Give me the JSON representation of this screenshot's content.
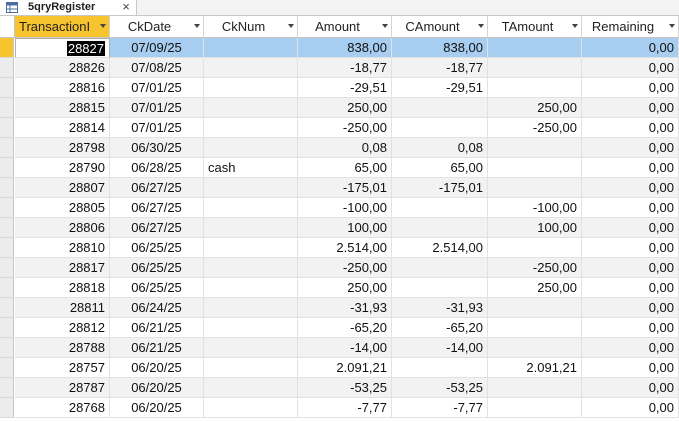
{
  "tab": {
    "title": "5qryRegister",
    "close_glyph": "×",
    "icon": "query-icon"
  },
  "columns": [
    "TransactionI",
    "CkDate",
    "CkNum",
    "Amount",
    "CAmount",
    "TAmount",
    "Remaining"
  ],
  "rows": [
    [
      "28827",
      "07/09/25",
      "",
      "838,00",
      "838,00",
      "",
      "0,00"
    ],
    [
      "28826",
      "07/08/25",
      "",
      "-18,77",
      "-18,77",
      "",
      "0,00"
    ],
    [
      "28816",
      "07/01/25",
      "",
      "-29,51",
      "-29,51",
      "",
      "0,00"
    ],
    [
      "28815",
      "07/01/25",
      "",
      "250,00",
      "",
      "250,00",
      "0,00"
    ],
    [
      "28814",
      "07/01/25",
      "",
      "-250,00",
      "",
      "-250,00",
      "0,00"
    ],
    [
      "28798",
      "06/30/25",
      "",
      "0,08",
      "0,08",
      "",
      "0,00"
    ],
    [
      "28790",
      "06/28/25",
      "cash",
      "65,00",
      "65,00",
      "",
      "0,00"
    ],
    [
      "28807",
      "06/27/25",
      "",
      "-175,01",
      "-175,01",
      "",
      "0,00"
    ],
    [
      "28805",
      "06/27/25",
      "",
      "-100,00",
      "",
      "-100,00",
      "0,00"
    ],
    [
      "28806",
      "06/27/25",
      "",
      "100,00",
      "",
      "100,00",
      "0,00"
    ],
    [
      "28810",
      "06/25/25",
      "",
      "2.514,00",
      "2.514,00",
      "",
      "0,00"
    ],
    [
      "28817",
      "06/25/25",
      "",
      "-250,00",
      "",
      "-250,00",
      "0,00"
    ],
    [
      "28818",
      "06/25/25",
      "",
      "250,00",
      "",
      "250,00",
      "0,00"
    ],
    [
      "28811",
      "06/24/25",
      "",
      "-31,93",
      "-31,93",
      "",
      "0,00"
    ],
    [
      "28812",
      "06/21/25",
      "",
      "-65,20",
      "-65,20",
      "",
      "0,00"
    ],
    [
      "28788",
      "06/21/25",
      "",
      "-14,00",
      "-14,00",
      "",
      "0,00"
    ],
    [
      "28757",
      "06/20/25",
      "",
      "2.091,21",
      "",
      "2.091,21",
      "0,00"
    ],
    [
      "28787",
      "06/20/25",
      "",
      "-53,25",
      "-53,25",
      "",
      "0,00"
    ],
    [
      "28768",
      "06/20/25",
      "",
      "-7,77",
      "-7,77",
      "",
      "0,00"
    ]
  ],
  "colors": {
    "selected_header": "#f7c32e",
    "current_row": "#a7cdf0"
  }
}
